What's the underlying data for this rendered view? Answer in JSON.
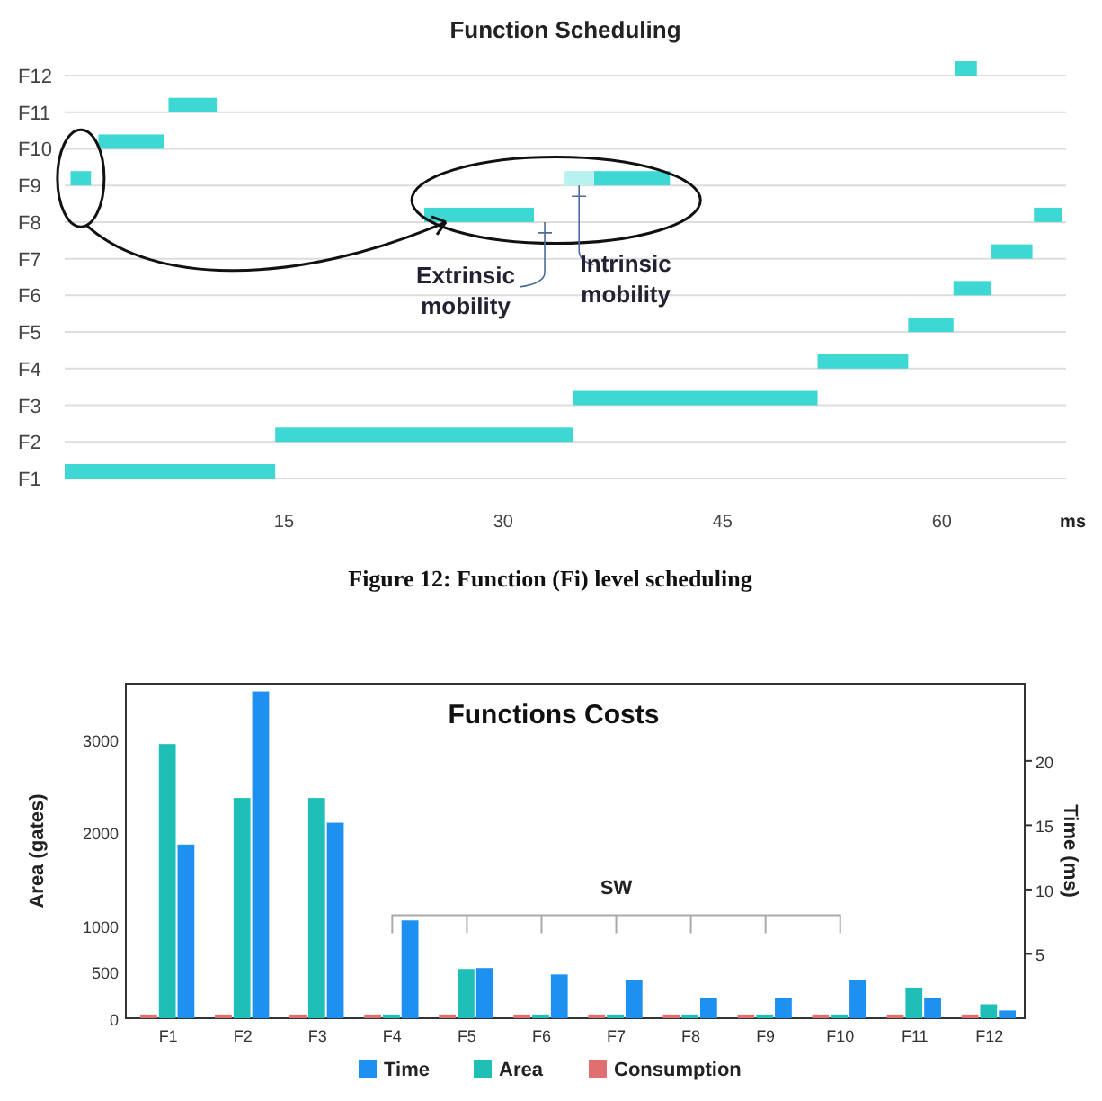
{
  "chart_data": [
    {
      "type": "bar",
      "orientation": "horizontal",
      "title": "Function Scheduling",
      "xlabel": "ms",
      "categories": [
        "F12",
        "F11",
        "F10",
        "F9",
        "F8",
        "F7",
        "F6",
        "F5",
        "F4",
        "F3",
        "F2",
        "F1"
      ],
      "series": [
        {
          "color": "#3dd8d4",
          "base": [
            60.9,
            7.1,
            2.3,
            0.4,
            24.6,
            63.4,
            60.8,
            57.7,
            51.5,
            34.8,
            14.4,
            0
          ],
          "values": [
            1.5,
            3.3,
            4.5,
            1.4,
            7.5,
            2.8,
            2.6,
            3.1,
            6.2,
            16.7,
            20.4,
            14.4
          ]
        },
        {
          "color": "#3dd8d4",
          "base": [
            null,
            null,
            null,
            36.2,
            66.3,
            null,
            null,
            null,
            null,
            null,
            null,
            null
          ],
          "values": [
            null,
            null,
            null,
            5.2,
            1.9,
            null,
            null,
            null,
            null,
            null,
            null,
            null
          ]
        },
        {
          "color": "#b8f2f0",
          "base": [
            null,
            null,
            null,
            34.2,
            null,
            null,
            null,
            null,
            null,
            null,
            null,
            null
          ],
          "values": [
            null,
            null,
            null,
            2.0,
            null,
            null,
            null,
            null,
            null,
            null,
            null,
            null
          ]
        }
      ],
      "xlim": [
        0,
        68.5
      ],
      "xticks": [
        15,
        30,
        45,
        60
      ],
      "grid": "y",
      "annotations": [
        "Extrinsic mobility",
        "Intrinsic mobility",
        "Figure 12: Function (Fi) level scheduling"
      ]
    },
    {
      "type": "bar",
      "title": "Functions Costs",
      "ylabel": "Area (gates)",
      "y2label": "Time (ms)",
      "categories": [
        "F1",
        "F2",
        "F3",
        "F4",
        "F5",
        "F6",
        "F7",
        "F8",
        "F9",
        "F10",
        "F11",
        "F12"
      ],
      "series": [
        {
          "name": "Time",
          "color": "#1e90f0",
          "axis": "y2",
          "values": [
            13.5,
            25.4,
            15.2,
            7.6,
            3.9,
            3.4,
            3.0,
            1.6,
            1.6,
            3.0,
            1.6,
            0.6
          ]
        },
        {
          "name": "Area",
          "color": "#1fbfb8",
          "values": [
            2950,
            2370,
            2370,
            40,
            530,
            40,
            40,
            40,
            40,
            40,
            330,
            150
          ]
        },
        {
          "name": "Consumption",
          "color": "#e07070",
          "values": [
            40,
            40,
            40,
            40,
            40,
            40,
            40,
            40,
            40,
            40,
            40,
            40
          ]
        }
      ],
      "ylim": [
        0,
        3600
      ],
      "yticks": [
        0,
        500,
        1000,
        2000,
        3000
      ],
      "y2lim": [
        0,
        26
      ],
      "y2ticks": [
        5,
        10,
        15,
        20
      ],
      "legend": "bottom",
      "annotations": [
        "SW"
      ]
    }
  ]
}
